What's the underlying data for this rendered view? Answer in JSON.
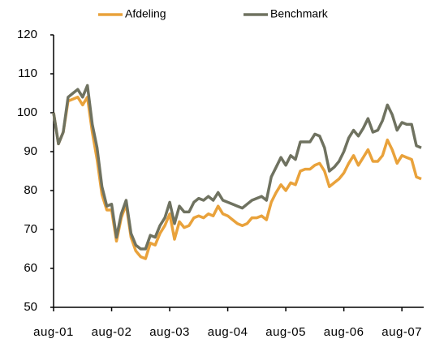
{
  "chart_data": {
    "type": "line",
    "categories": [
      "aug-01",
      null,
      null,
      null,
      null,
      null,
      null,
      null,
      null,
      null,
      null,
      null,
      "aug-02",
      null,
      null,
      null,
      null,
      null,
      null,
      null,
      null,
      null,
      null,
      null,
      "aug-03",
      null,
      null,
      null,
      null,
      null,
      null,
      null,
      null,
      null,
      null,
      null,
      "aug-04",
      null,
      null,
      null,
      null,
      null,
      null,
      null,
      null,
      null,
      null,
      null,
      "aug-05",
      null,
      null,
      null,
      null,
      null,
      null,
      null,
      null,
      null,
      null,
      null,
      "aug-06",
      null,
      null,
      null,
      null,
      null,
      null,
      null,
      null,
      null,
      null,
      null,
      "aug-07",
      null,
      null,
      null,
      null
    ],
    "series": [
      {
        "name": "Afdeling",
        "color": "#e9a23b",
        "values": [
          100,
          92,
          95,
          103,
          103.5,
          104,
          102,
          104,
          95,
          88,
          79,
          75,
          75,
          67,
          73,
          76.5,
          68,
          64.5,
          63,
          62.5,
          66.5,
          66,
          69,
          71,
          74,
          67.5,
          72,
          70.5,
          71,
          73,
          73.5,
          73,
          74,
          73.5,
          76,
          74,
          73.5,
          72.5,
          71.5,
          71,
          71.5,
          73,
          73,
          73.5,
          72.5,
          77,
          79.5,
          81.5,
          80,
          82,
          81.5,
          85,
          85.5,
          85.5,
          86.5,
          87,
          85,
          81,
          82,
          83,
          84.5,
          87,
          89,
          86.5,
          88.5,
          90.5,
          87.5,
          87.5,
          89,
          93,
          90.5,
          87,
          89,
          88.5,
          88,
          83.5,
          83
        ]
      },
      {
        "name": "Benchmark",
        "color": "#6f7260",
        "values": [
          100,
          92,
          95,
          104,
          105,
          106,
          104,
          107,
          97,
          91,
          81,
          76,
          76.5,
          68,
          74,
          77.5,
          69,
          66,
          65,
          65,
          68.5,
          68,
          71,
          73,
          77,
          71.5,
          76,
          74.5,
          74.5,
          77,
          78,
          77.5,
          78.5,
          77.5,
          79.5,
          77.5,
          77,
          76.5,
          76,
          75.5,
          76.5,
          77.5,
          78,
          78.5,
          77.5,
          83.5,
          86,
          88.5,
          86.5,
          89,
          88,
          92.5,
          92.5,
          92.5,
          94.5,
          94,
          91,
          85,
          86,
          87.5,
          90,
          93.5,
          95.5,
          94,
          96,
          98.5,
          95,
          95.5,
          98,
          102,
          99.5,
          95.5,
          97.5,
          97,
          97,
          91.5,
          91
        ]
      }
    ],
    "ylim": [
      50,
      120
    ],
    "yticks": [
      50,
      60,
      70,
      80,
      90,
      100,
      110,
      120
    ],
    "grid": false,
    "legend": "top"
  }
}
